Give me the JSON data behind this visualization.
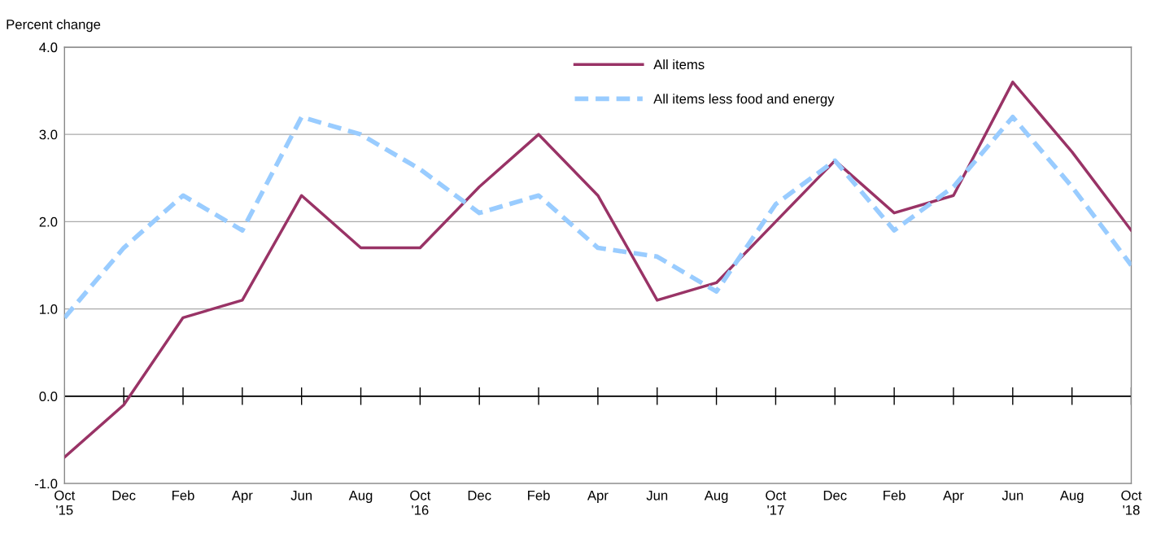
{
  "chart_data": {
    "type": "line",
    "ylabel": "Percent change",
    "categories": [
      "Oct\n'15",
      "Dec",
      "Feb",
      "Apr",
      "Jun",
      "Aug",
      "Oct\n'16",
      "Dec",
      "Feb",
      "Apr",
      "Jun",
      "Aug",
      "Oct\n'17",
      "Dec",
      "Feb",
      "Apr",
      "Jun",
      "Aug",
      "Oct\n'18"
    ],
    "series": [
      {
        "name": "All items",
        "color": "#993366",
        "line_style": "solid",
        "values": [
          -0.7,
          -0.1,
          0.9,
          1.1,
          2.3,
          1.7,
          1.7,
          2.4,
          3.0,
          2.3,
          1.1,
          1.3,
          2.0,
          2.7,
          2.1,
          2.3,
          3.6,
          2.8,
          1.9
        ]
      },
      {
        "name": "All items less food and energy",
        "color": "#99ccff",
        "line_style": "dashed",
        "values": [
          0.9,
          1.7,
          2.3,
          1.9,
          3.2,
          3.0,
          2.6,
          2.1,
          2.3,
          1.7,
          1.6,
          1.2,
          2.2,
          2.7,
          1.9,
          2.4,
          3.2,
          2.4,
          1.5
        ]
      }
    ],
    "ylim": [
      -1,
      4
    ],
    "yticks": [
      {
        "value": -1,
        "label": "-1.0"
      },
      {
        "value": 0,
        "label": "0.0"
      },
      {
        "value": 1,
        "label": "1.0"
      },
      {
        "value": 2,
        "label": "2.0"
      },
      {
        "value": 3,
        "label": "3.0"
      },
      {
        "value": 4,
        "label": "4.0"
      }
    ],
    "ref_lines": [
      {
        "axis": "y",
        "value": 0,
        "color": "#000000"
      }
    ],
    "grid": "y",
    "legend": "top",
    "marker": "none"
  }
}
